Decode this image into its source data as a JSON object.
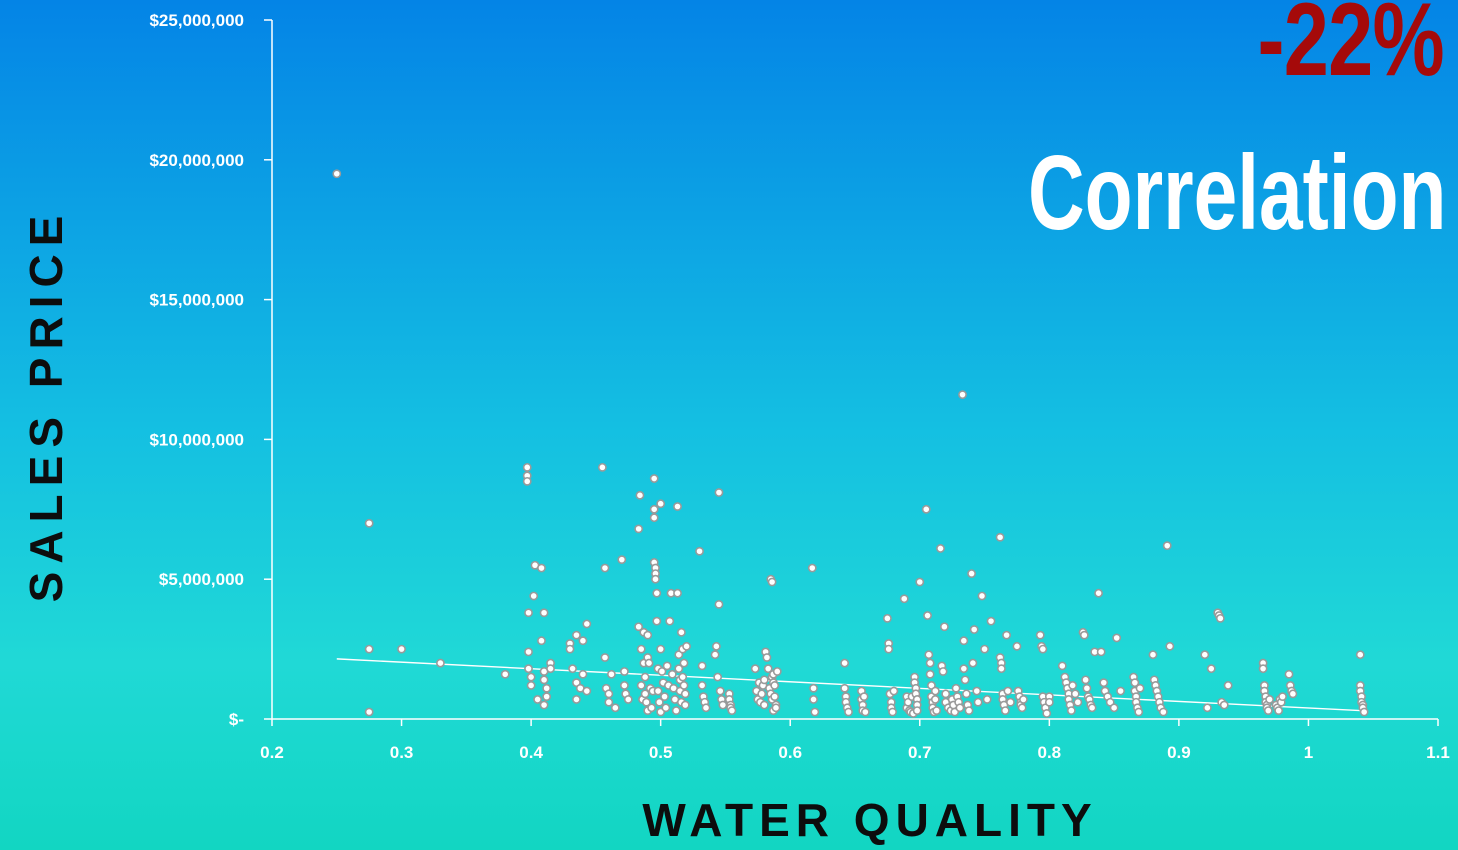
{
  "headline": {
    "percent": "-22%",
    "word": "Correlation"
  },
  "chart_data": {
    "type": "scatter",
    "title": "",
    "xlabel": "WATER QUALITY",
    "ylabel": "SALES PRICE",
    "xlim": [
      0.2,
      1.1
    ],
    "ylim": [
      0,
      25000000
    ],
    "x_ticks": [
      "0.2",
      "0.3",
      "0.4",
      "0.5",
      "0.6",
      "0.7",
      "0.8",
      "0.9",
      "1",
      "1.1"
    ],
    "y_ticks": [
      "$-",
      "$5,000,000",
      "$10,000,000",
      "$15,000,000",
      "$20,000,000",
      "$25,000,000"
    ],
    "grid": false,
    "legend": "none",
    "trendline": {
      "x": [
        0.25,
        1.04
      ],
      "y": [
        2150000,
        300000
      ]
    },
    "points": {
      "x": [
        0.25,
        0.275,
        0.275,
        0.275,
        0.3,
        0.33,
        0.38,
        0.397,
        0.397,
        0.397,
        0.398,
        0.398,
        0.398,
        0.4,
        0.4,
        0.402,
        0.403,
        0.405,
        0.408,
        0.408,
        0.41,
        0.41,
        0.41,
        0.41,
        0.412,
        0.412,
        0.415,
        0.415,
        0.43,
        0.43,
        0.432,
        0.435,
        0.435,
        0.435,
        0.438,
        0.44,
        0.44,
        0.443,
        0.443,
        0.455,
        0.457,
        0.457,
        0.458,
        0.46,
        0.46,
        0.462,
        0.465,
        0.47,
        0.472,
        0.472,
        0.473,
        0.475,
        0.483,
        0.483,
        0.484,
        0.485,
        0.485,
        0.486,
        0.487,
        0.487,
        0.488,
        0.488,
        0.489,
        0.49,
        0.49,
        0.49,
        0.491,
        0.492,
        0.493,
        0.494,
        0.495,
        0.495,
        0.495,
        0.495,
        0.496,
        0.496,
        0.496,
        0.497,
        0.497,
        0.498,
        0.498,
        0.499,
        0.5,
        0.5,
        0.5,
        0.501,
        0.502,
        0.503,
        0.504,
        0.505,
        0.506,
        0.507,
        0.508,
        0.509,
        0.51,
        0.511,
        0.512,
        0.513,
        0.513,
        0.514,
        0.514,
        0.515,
        0.515,
        0.516,
        0.516,
        0.517,
        0.517,
        0.518,
        0.518,
        0.519,
        0.519,
        0.52,
        0.53,
        0.532,
        0.532,
        0.533,
        0.534,
        0.535,
        0.542,
        0.543,
        0.544,
        0.545,
        0.545,
        0.546,
        0.547,
        0.548,
        0.553,
        0.553,
        0.554,
        0.554,
        0.555,
        0.573,
        0.574,
        0.575,
        0.576,
        0.577,
        0.578,
        0.579,
        0.58,
        0.58,
        0.581,
        0.582,
        0.583,
        0.584,
        0.585,
        0.585,
        0.586,
        0.586,
        0.586,
        0.587,
        0.587,
        0.587,
        0.588,
        0.588,
        0.589,
        0.589,
        0.59,
        0.617,
        0.618,
        0.618,
        0.619,
        0.642,
        0.642,
        0.643,
        0.643,
        0.644,
        0.645,
        0.655,
        0.655,
        0.656,
        0.656,
        0.657,
        0.658,
        0.675,
        0.676,
        0.676,
        0.677,
        0.678,
        0.678,
        0.679,
        0.68,
        0.688,
        0.69,
        0.69,
        0.691,
        0.692,
        0.693,
        0.694,
        0.695,
        0.696,
        0.696,
        0.697,
        0.697,
        0.698,
        0.698,
        0.698,
        0.7,
        0.705,
        0.706,
        0.707,
        0.708,
        0.708,
        0.709,
        0.709,
        0.71,
        0.71,
        0.711,
        0.712,
        0.712,
        0.713,
        0.716,
        0.717,
        0.718,
        0.719,
        0.72,
        0.72,
        0.722,
        0.724,
        0.725,
        0.726,
        0.727,
        0.728,
        0.729,
        0.73,
        0.731,
        0.733,
        0.734,
        0.734,
        0.735,
        0.736,
        0.737,
        0.738,
        0.74,
        0.741,
        0.742,
        0.744,
        0.745,
        0.748,
        0.75,
        0.752,
        0.755,
        0.762,
        0.762,
        0.763,
        0.763,
        0.764,
        0.764,
        0.765,
        0.766,
        0.767,
        0.768,
        0.77,
        0.775,
        0.776,
        0.777,
        0.778,
        0.778,
        0.779,
        0.78,
        0.793,
        0.794,
        0.795,
        0.795,
        0.796,
        0.797,
        0.798,
        0.8,
        0.8,
        0.81,
        0.812,
        0.813,
        0.814,
        0.815,
        0.815,
        0.816,
        0.817,
        0.818,
        0.82,
        0.822,
        0.826,
        0.827,
        0.828,
        0.829,
        0.83,
        0.831,
        0.832,
        0.833,
        0.835,
        0.838,
        0.84,
        0.842,
        0.843,
        0.845,
        0.847,
        0.85,
        0.852,
        0.855,
        0.865,
        0.866,
        0.866,
        0.867,
        0.867,
        0.868,
        0.869,
        0.87,
        0.88,
        0.881,
        0.882,
        0.883,
        0.884,
        0.885,
        0.886,
        0.888,
        0.891,
        0.893,
        0.92,
        0.922,
        0.925,
        0.93,
        0.931,
        0.932,
        0.933,
        0.935,
        0.938,
        0.965,
        0.965,
        0.966,
        0.966,
        0.967,
        0.967,
        0.968,
        0.968,
        0.969,
        0.97,
        0.975,
        0.976,
        0.977,
        0.978,
        0.979,
        0.98,
        0.985,
        0.986,
        0.987,
        0.988,
        1.04,
        1.04,
        1.04,
        1.041,
        1.041,
        1.042,
        1.042,
        1.043
      ],
      "y": [
        19500000,
        7000000,
        2500000,
        250000,
        2500000,
        2000000,
        1600000,
        9000000,
        8700000,
        8500000,
        3800000,
        2400000,
        1800000,
        1500000,
        1200000,
        4400000,
        5500000,
        700000,
        5400000,
        2800000,
        3800000,
        1700000,
        1400000,
        500000,
        1100000,
        800000,
        2000000,
        1800000,
        2700000,
        2500000,
        1800000,
        3000000,
        1300000,
        700000,
        1100000,
        2800000,
        1600000,
        3400000,
        1000000,
        9000000,
        5400000,
        2200000,
        1100000,
        900000,
        600000,
        1600000,
        400000,
        5700000,
        1700000,
        1200000,
        900000,
        700000,
        6800000,
        3300000,
        8000000,
        2500000,
        1200000,
        700000,
        3100000,
        2000000,
        1500000,
        900000,
        600000,
        3000000,
        2200000,
        300000,
        2000000,
        1100000,
        400000,
        1000000,
        8600000,
        7500000,
        7200000,
        5600000,
        5400000,
        5200000,
        5000000,
        4500000,
        3500000,
        1800000,
        1000000,
        600000,
        250000,
        7700000,
        2500000,
        1700000,
        1300000,
        800000,
        400000,
        1900000,
        1200000,
        3500000,
        4500000,
        1600000,
        1100000,
        700000,
        300000,
        7600000,
        4500000,
        2300000,
        1800000,
        1400000,
        1000000,
        3100000,
        600000,
        2500000,
        1500000,
        2000000,
        1200000,
        900000,
        500000,
        2600000,
        6000000,
        1900000,
        1200000,
        800000,
        600000,
        400000,
        2300000,
        2600000,
        1500000,
        4100000,
        8100000,
        1000000,
        700000,
        500000,
        900000,
        700000,
        500000,
        400000,
        300000,
        1800000,
        1000000,
        700000,
        1300000,
        600000,
        900000,
        1200000,
        1400000,
        500000,
        2400000,
        2200000,
        1800000,
        1100000,
        900000,
        5000000,
        4900000,
        1500000,
        700000,
        1600000,
        1300000,
        300000,
        1200000,
        800000,
        500000,
        400000,
        1700000,
        5400000,
        1100000,
        700000,
        250000,
        2000000,
        1100000,
        800000,
        600000,
        400000,
        250000,
        1000000,
        700000,
        500000,
        300000,
        800000,
        250000,
        3600000,
        2700000,
        2500000,
        900000,
        600000,
        400000,
        250000,
        1000000,
        4300000,
        800000,
        400000,
        600000,
        300000,
        250000,
        800000,
        200000,
        1500000,
        1300000,
        1100000,
        900000,
        700000,
        500000,
        300000,
        4900000,
        7500000,
        3700000,
        2300000,
        2000000,
        1600000,
        1200000,
        800000,
        600000,
        400000,
        250000,
        1000000,
        700000,
        300000,
        6100000,
        1900000,
        1700000,
        3300000,
        900000,
        600000,
        400000,
        300000,
        700000,
        500000,
        250000,
        1100000,
        800000,
        600000,
        400000,
        11600000,
        2800000,
        1800000,
        1400000,
        900000,
        500000,
        300000,
        5200000,
        2000000,
        3200000,
        1000000,
        600000,
        4400000,
        2500000,
        700000,
        3500000,
        6500000,
        2200000,
        2000000,
        1800000,
        900000,
        700000,
        500000,
        300000,
        3000000,
        1000000,
        600000,
        2600000,
        1000000,
        800000,
        600000,
        500000,
        400000,
        700000,
        3000000,
        2600000,
        2500000,
        800000,
        600000,
        400000,
        200000,
        800000,
        600000,
        1900000,
        1500000,
        1300000,
        1100000,
        900000,
        700000,
        500000,
        300000,
        1200000,
        900000,
        600000,
        3100000,
        3000000,
        1400000,
        1100000,
        800000,
        700000,
        500000,
        400000,
        2400000,
        4500000,
        2400000,
        1300000,
        1000000,
        800000,
        600000,
        400000,
        2900000,
        1000000,
        1500000,
        1300000,
        1000000,
        800000,
        600000,
        400000,
        250000,
        1100000,
        2300000,
        1400000,
        1200000,
        1000000,
        800000,
        600000,
        400000,
        250000,
        6200000,
        2600000,
        2300000,
        400000,
        1800000,
        3800000,
        3700000,
        3600000,
        600000,
        500000,
        1200000,
        2000000,
        1800000,
        1200000,
        1000000,
        800000,
        600000,
        500000,
        400000,
        300000,
        700000,
        500000,
        400000,
        300000,
        700000,
        600000,
        800000,
        1600000,
        1200000,
        1000000,
        900000,
        2300000,
        1200000,
        1000000,
        800000,
        600000,
        500000,
        400000,
        250000
      ]
    }
  }
}
